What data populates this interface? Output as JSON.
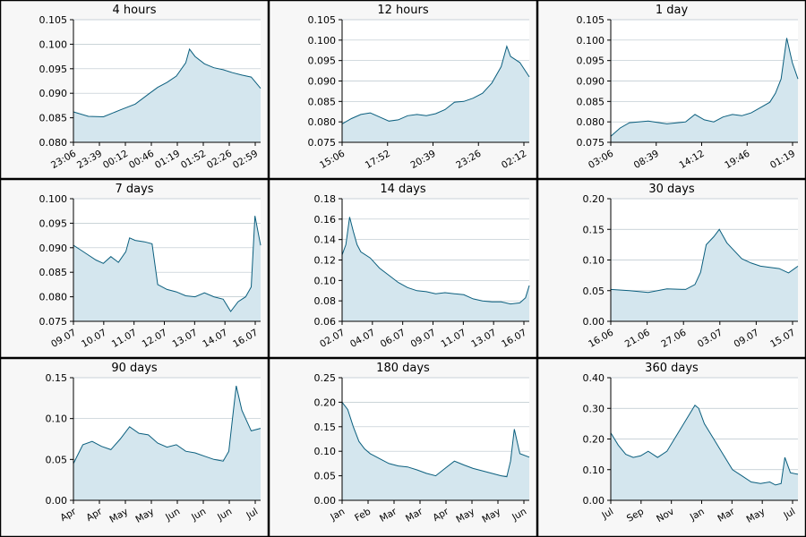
{
  "colors": {
    "line": "#0b5f7e",
    "fill": "#d4e6ee",
    "grid": "#b9c5cc",
    "axis": "#000000",
    "panel_bg": "#f7f7f7",
    "plot_bg": "#ffffff",
    "border": "#000000"
  },
  "chart_data": [
    {
      "type": "area",
      "title": "4 hours",
      "ylim": [
        0.08,
        0.105
      ],
      "yticks": [
        "0.080",
        "0.085",
        "0.090",
        "0.095",
        "0.100",
        "0.105"
      ],
      "xticks": [
        "23:06",
        "23:39",
        "00:12",
        "00:46",
        "01:19",
        "01:52",
        "02:26",
        "02:59"
      ],
      "grid": true,
      "series": [
        {
          "x": [
            0,
            0.08,
            0.16,
            0.25,
            0.33,
            0.4,
            0.45,
            0.5,
            0.55,
            0.6,
            0.62,
            0.65,
            0.7,
            0.75,
            0.8,
            0.85,
            0.9,
            0.95,
            1.0
          ],
          "values": [
            0.0862,
            0.0853,
            0.0852,
            0.0866,
            0.0878,
            0.0898,
            0.0912,
            0.0922,
            0.0935,
            0.0962,
            0.099,
            0.0975,
            0.096,
            0.0952,
            0.0948,
            0.0942,
            0.0937,
            0.0933,
            0.091
          ]
        }
      ]
    },
    {
      "type": "area",
      "title": "12 hours",
      "ylim": [
        0.075,
        0.105
      ],
      "yticks": [
        "0.075",
        "0.080",
        "0.085",
        "0.090",
        "0.095",
        "0.100",
        "0.105"
      ],
      "xticks": [
        "15:06",
        "17:52",
        "20:39",
        "23:26",
        "02:12"
      ],
      "grid": true,
      "series": [
        {
          "x": [
            0,
            0.05,
            0.1,
            0.15,
            0.2,
            0.25,
            0.3,
            0.35,
            0.4,
            0.45,
            0.5,
            0.55,
            0.6,
            0.65,
            0.7,
            0.75,
            0.8,
            0.85,
            0.88,
            0.9,
            0.95,
            1.0
          ],
          "values": [
            0.0795,
            0.0808,
            0.0818,
            0.0822,
            0.0812,
            0.0802,
            0.0805,
            0.0815,
            0.0818,
            0.0815,
            0.082,
            0.083,
            0.0848,
            0.085,
            0.0858,
            0.087,
            0.0895,
            0.0935,
            0.0985,
            0.096,
            0.0945,
            0.091
          ]
        }
      ]
    },
    {
      "type": "area",
      "title": "1 day",
      "ylim": [
        0.075,
        0.105
      ],
      "yticks": [
        "0.075",
        "0.080",
        "0.085",
        "0.090",
        "0.095",
        "0.100",
        "0.105"
      ],
      "xticks": [
        "03:06",
        "08:39",
        "14:12",
        "19:46",
        "01:19"
      ],
      "grid": true,
      "series": [
        {
          "x": [
            0,
            0.05,
            0.1,
            0.2,
            0.3,
            0.4,
            0.45,
            0.5,
            0.55,
            0.6,
            0.65,
            0.7,
            0.75,
            0.8,
            0.85,
            0.88,
            0.91,
            0.94,
            0.97,
            1.0
          ],
          "values": [
            0.0765,
            0.0785,
            0.0798,
            0.0802,
            0.0795,
            0.08,
            0.0818,
            0.0805,
            0.08,
            0.0812,
            0.0818,
            0.0815,
            0.0822,
            0.0835,
            0.0848,
            0.087,
            0.0905,
            0.1005,
            0.0945,
            0.0905
          ]
        }
      ]
    },
    {
      "type": "area",
      "title": "7 days",
      "ylim": [
        0.075,
        0.1
      ],
      "yticks": [
        "0.075",
        "0.080",
        "0.085",
        "0.090",
        "0.095",
        "0.100"
      ],
      "xticks": [
        "09.07",
        "10.07",
        "11.07",
        "12.07",
        "13.07",
        "14.07",
        "16.07"
      ],
      "grid": true,
      "series": [
        {
          "x": [
            0,
            0.04,
            0.08,
            0.12,
            0.16,
            0.2,
            0.24,
            0.28,
            0.3,
            0.33,
            0.38,
            0.42,
            0.45,
            0.5,
            0.55,
            0.6,
            0.65,
            0.7,
            0.75,
            0.8,
            0.84,
            0.88,
            0.92,
            0.95,
            0.97,
            1.0
          ],
          "values": [
            0.0905,
            0.0895,
            0.0885,
            0.0875,
            0.0868,
            0.0882,
            0.087,
            0.0892,
            0.092,
            0.0915,
            0.0912,
            0.0908,
            0.0825,
            0.0815,
            0.081,
            0.0802,
            0.08,
            0.0808,
            0.08,
            0.0795,
            0.077,
            0.079,
            0.08,
            0.082,
            0.0965,
            0.0905
          ]
        }
      ]
    },
    {
      "type": "area",
      "title": "14 days",
      "ylim": [
        0.06,
        0.18
      ],
      "yticks": [
        "0.06",
        "0.08",
        "0.10",
        "0.12",
        "0.14",
        "0.16",
        "0.18"
      ],
      "xticks": [
        "02.07",
        "04.07",
        "06.07",
        "09.07",
        "11.07",
        "13.07",
        "16.07"
      ],
      "grid": true,
      "series": [
        {
          "x": [
            0,
            0.02,
            0.04,
            0.06,
            0.08,
            0.1,
            0.15,
            0.2,
            0.25,
            0.3,
            0.35,
            0.4,
            0.45,
            0.5,
            0.55,
            0.6,
            0.65,
            0.7,
            0.75,
            0.8,
            0.85,
            0.9,
            0.95,
            0.98,
            1.0
          ],
          "values": [
            0.125,
            0.135,
            0.162,
            0.148,
            0.135,
            0.128,
            0.122,
            0.112,
            0.105,
            0.098,
            0.093,
            0.09,
            0.089,
            0.087,
            0.088,
            0.087,
            0.086,
            0.082,
            0.08,
            0.079,
            0.079,
            0.077,
            0.078,
            0.083,
            0.095
          ]
        }
      ]
    },
    {
      "type": "area",
      "title": "30 days",
      "ylim": [
        0.0,
        0.2
      ],
      "yticks": [
        "0.00",
        "0.05",
        "0.10",
        "0.15",
        "0.20"
      ],
      "xticks": [
        "16.06",
        "21.06",
        "27.06",
        "03.07",
        "09.07",
        "15.07"
      ],
      "grid": true,
      "series": [
        {
          "x": [
            0,
            0.1,
            0.2,
            0.3,
            0.4,
            0.45,
            0.48,
            0.51,
            0.55,
            0.58,
            0.62,
            0.66,
            0.7,
            0.75,
            0.8,
            0.85,
            0.9,
            0.95,
            1.0
          ],
          "values": [
            0.052,
            0.05,
            0.047,
            0.053,
            0.052,
            0.06,
            0.08,
            0.125,
            0.138,
            0.15,
            0.128,
            0.115,
            0.102,
            0.095,
            0.09,
            0.088,
            0.086,
            0.079,
            0.09
          ]
        }
      ]
    },
    {
      "type": "area",
      "title": "90 days",
      "ylim": [
        0.0,
        0.15
      ],
      "yticks": [
        "0.00",
        "0.05",
        "0.10",
        "0.15"
      ],
      "xticks": [
        "Apr",
        "Apr",
        "May",
        "May",
        "Jun",
        "Jun",
        "Jun",
        "Jul"
      ],
      "grid": true,
      "series": [
        {
          "x": [
            0,
            0.05,
            0.1,
            0.15,
            0.2,
            0.25,
            0.3,
            0.35,
            0.4,
            0.45,
            0.5,
            0.55,
            0.6,
            0.65,
            0.7,
            0.75,
            0.8,
            0.83,
            0.85,
            0.87,
            0.9,
            0.95,
            1.0
          ],
          "values": [
            0.045,
            0.068,
            0.072,
            0.066,
            0.062,
            0.075,
            0.09,
            0.082,
            0.08,
            0.07,
            0.065,
            0.068,
            0.06,
            0.058,
            0.054,
            0.05,
            0.048,
            0.06,
            0.1,
            0.14,
            0.11,
            0.085,
            0.088
          ]
        }
      ]
    },
    {
      "type": "area",
      "title": "180 days",
      "ylim": [
        0.0,
        0.25
      ],
      "yticks": [
        "0.00",
        "0.05",
        "0.10",
        "0.15",
        "0.20",
        "0.25"
      ],
      "xticks": [
        "Jan",
        "Feb",
        "Mar",
        "Mar",
        "Apr",
        "May",
        "May",
        "Jun"
      ],
      "grid": true,
      "series": [
        {
          "x": [
            0,
            0.03,
            0.06,
            0.09,
            0.12,
            0.15,
            0.2,
            0.25,
            0.3,
            0.35,
            0.4,
            0.45,
            0.5,
            0.55,
            0.6,
            0.65,
            0.7,
            0.75,
            0.8,
            0.85,
            0.88,
            0.9,
            0.92,
            0.95,
            1.0
          ],
          "values": [
            0.2,
            0.185,
            0.15,
            0.12,
            0.105,
            0.095,
            0.085,
            0.075,
            0.07,
            0.068,
            0.062,
            0.055,
            0.05,
            0.065,
            0.08,
            0.072,
            0.065,
            0.06,
            0.055,
            0.05,
            0.048,
            0.08,
            0.145,
            0.095,
            0.088
          ]
        }
      ]
    },
    {
      "type": "area",
      "title": "360 days",
      "ylim": [
        0.0,
        0.4
      ],
      "yticks": [
        "0.00",
        "0.10",
        "0.20",
        "0.30",
        "0.40"
      ],
      "xticks": [
        "Jul",
        "Sep",
        "Nov",
        "Jan",
        "Mar",
        "May",
        "Jul"
      ],
      "grid": true,
      "series": [
        {
          "x": [
            0,
            0.04,
            0.08,
            0.12,
            0.16,
            0.2,
            0.25,
            0.3,
            0.35,
            0.4,
            0.45,
            0.47,
            0.5,
            0.55,
            0.6,
            0.65,
            0.7,
            0.75,
            0.8,
            0.85,
            0.88,
            0.91,
            0.93,
            0.96,
            1.0
          ],
          "values": [
            0.22,
            0.18,
            0.15,
            0.14,
            0.145,
            0.16,
            0.14,
            0.16,
            0.21,
            0.26,
            0.31,
            0.3,
            0.25,
            0.2,
            0.15,
            0.1,
            0.08,
            0.06,
            0.055,
            0.06,
            0.05,
            0.055,
            0.14,
            0.09,
            0.085
          ]
        }
      ]
    }
  ]
}
